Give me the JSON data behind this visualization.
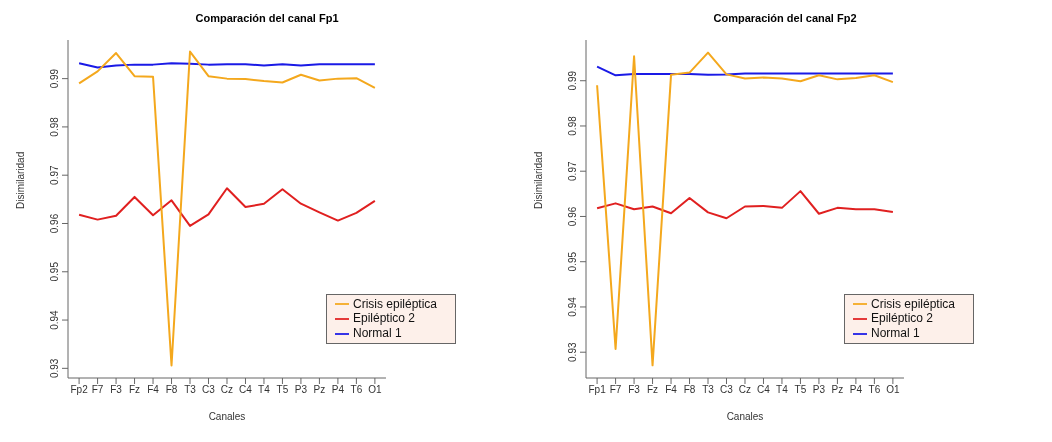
{
  "chart_data": [
    {
      "type": "line",
      "title": "Comparación del canal Fp1",
      "xlabel": "Canales",
      "ylabel": "Disimilaridad",
      "categories": [
        "Fp2",
        "F7",
        "F3",
        "Fz",
        "F4",
        "F8",
        "T3",
        "C3",
        "Cz",
        "C4",
        "T4",
        "T5",
        "P3",
        "Pz",
        "P4",
        "T6",
        "O1"
      ],
      "ylim": [
        0.928,
        0.998
      ],
      "yticks": [
        0.93,
        0.94,
        0.95,
        0.96,
        0.97,
        0.98,
        0.99
      ],
      "grid": false,
      "legend": "bottom right",
      "marker": "none",
      "line_style": "solid",
      "series": [
        {
          "name": "Normal 1",
          "color": "#1a1ae6",
          "values": [
            0.9932,
            0.9923,
            0.9927,
            0.9929,
            0.9929,
            0.9932,
            0.9931,
            0.9929,
            0.993,
            0.993,
            0.9927,
            0.993,
            0.9927,
            0.993,
            0.993,
            0.993,
            0.993
          ]
        },
        {
          "name": "Epiléptico 2",
          "color": "#e02020",
          "values": [
            0.9618,
            0.9608,
            0.9616,
            0.9655,
            0.9617,
            0.9648,
            0.9595,
            0.9619,
            0.9673,
            0.9634,
            0.9641,
            0.9671,
            0.9641,
            0.9623,
            0.9606,
            0.9622,
            0.9647
          ]
        },
        {
          "name": "Crisis epiléptica",
          "color": "#f4a81d",
          "values": [
            0.989,
            0.9915,
            0.9953,
            0.9905,
            0.9904,
            0.9306,
            0.9956,
            0.9905,
            0.99,
            0.9899,
            0.9895,
            0.9892,
            0.9908,
            0.9896,
            0.99,
            0.9901,
            0.9881
          ]
        }
      ]
    },
    {
      "type": "line",
      "title": "Comparación del canal Fp2",
      "xlabel": "Canales",
      "ylabel": "Disimilaridad",
      "categories": [
        "Fp1",
        "F7",
        "F3",
        "Fz",
        "F4",
        "F8",
        "T3",
        "C3",
        "Cz",
        "C4",
        "T4",
        "T5",
        "P3",
        "Pz",
        "P4",
        "T6",
        "O1"
      ],
      "ylim": [
        0.9243,
        0.999
      ],
      "yticks": [
        0.93,
        0.94,
        0.95,
        0.96,
        0.97,
        0.98,
        0.99
      ],
      "grid": false,
      "legend": "bottom right",
      "marker": "none",
      "line_style": "solid",
      "series": [
        {
          "name": "Normal 1",
          "color": "#1a1ae6",
          "values": [
            0.9931,
            0.9912,
            0.9915,
            0.9915,
            0.9915,
            0.9915,
            0.9913,
            0.9914,
            0.9916,
            0.9916,
            0.9916,
            0.9916,
            0.9916,
            0.9916,
            0.9916,
            0.9916,
            0.9916
          ]
        },
        {
          "name": "Epiléptico 2",
          "color": "#e02020",
          "values": [
            0.9618,
            0.9629,
            0.9616,
            0.9622,
            0.9607,
            0.9641,
            0.9609,
            0.9596,
            0.9622,
            0.9623,
            0.9619,
            0.9656,
            0.9606,
            0.9619,
            0.9616,
            0.9616,
            0.961
          ]
        },
        {
          "name": "Crisis epiléptica",
          "color": "#f4a81d",
          "values": [
            0.989,
            0.9307,
            0.9954,
            0.9271,
            0.9913,
            0.9918,
            0.9962,
            0.9914,
            0.9905,
            0.9907,
            0.9905,
            0.9899,
            0.9912,
            0.9903,
            0.9906,
            0.9912,
            0.9897
          ]
        }
      ]
    }
  ]
}
